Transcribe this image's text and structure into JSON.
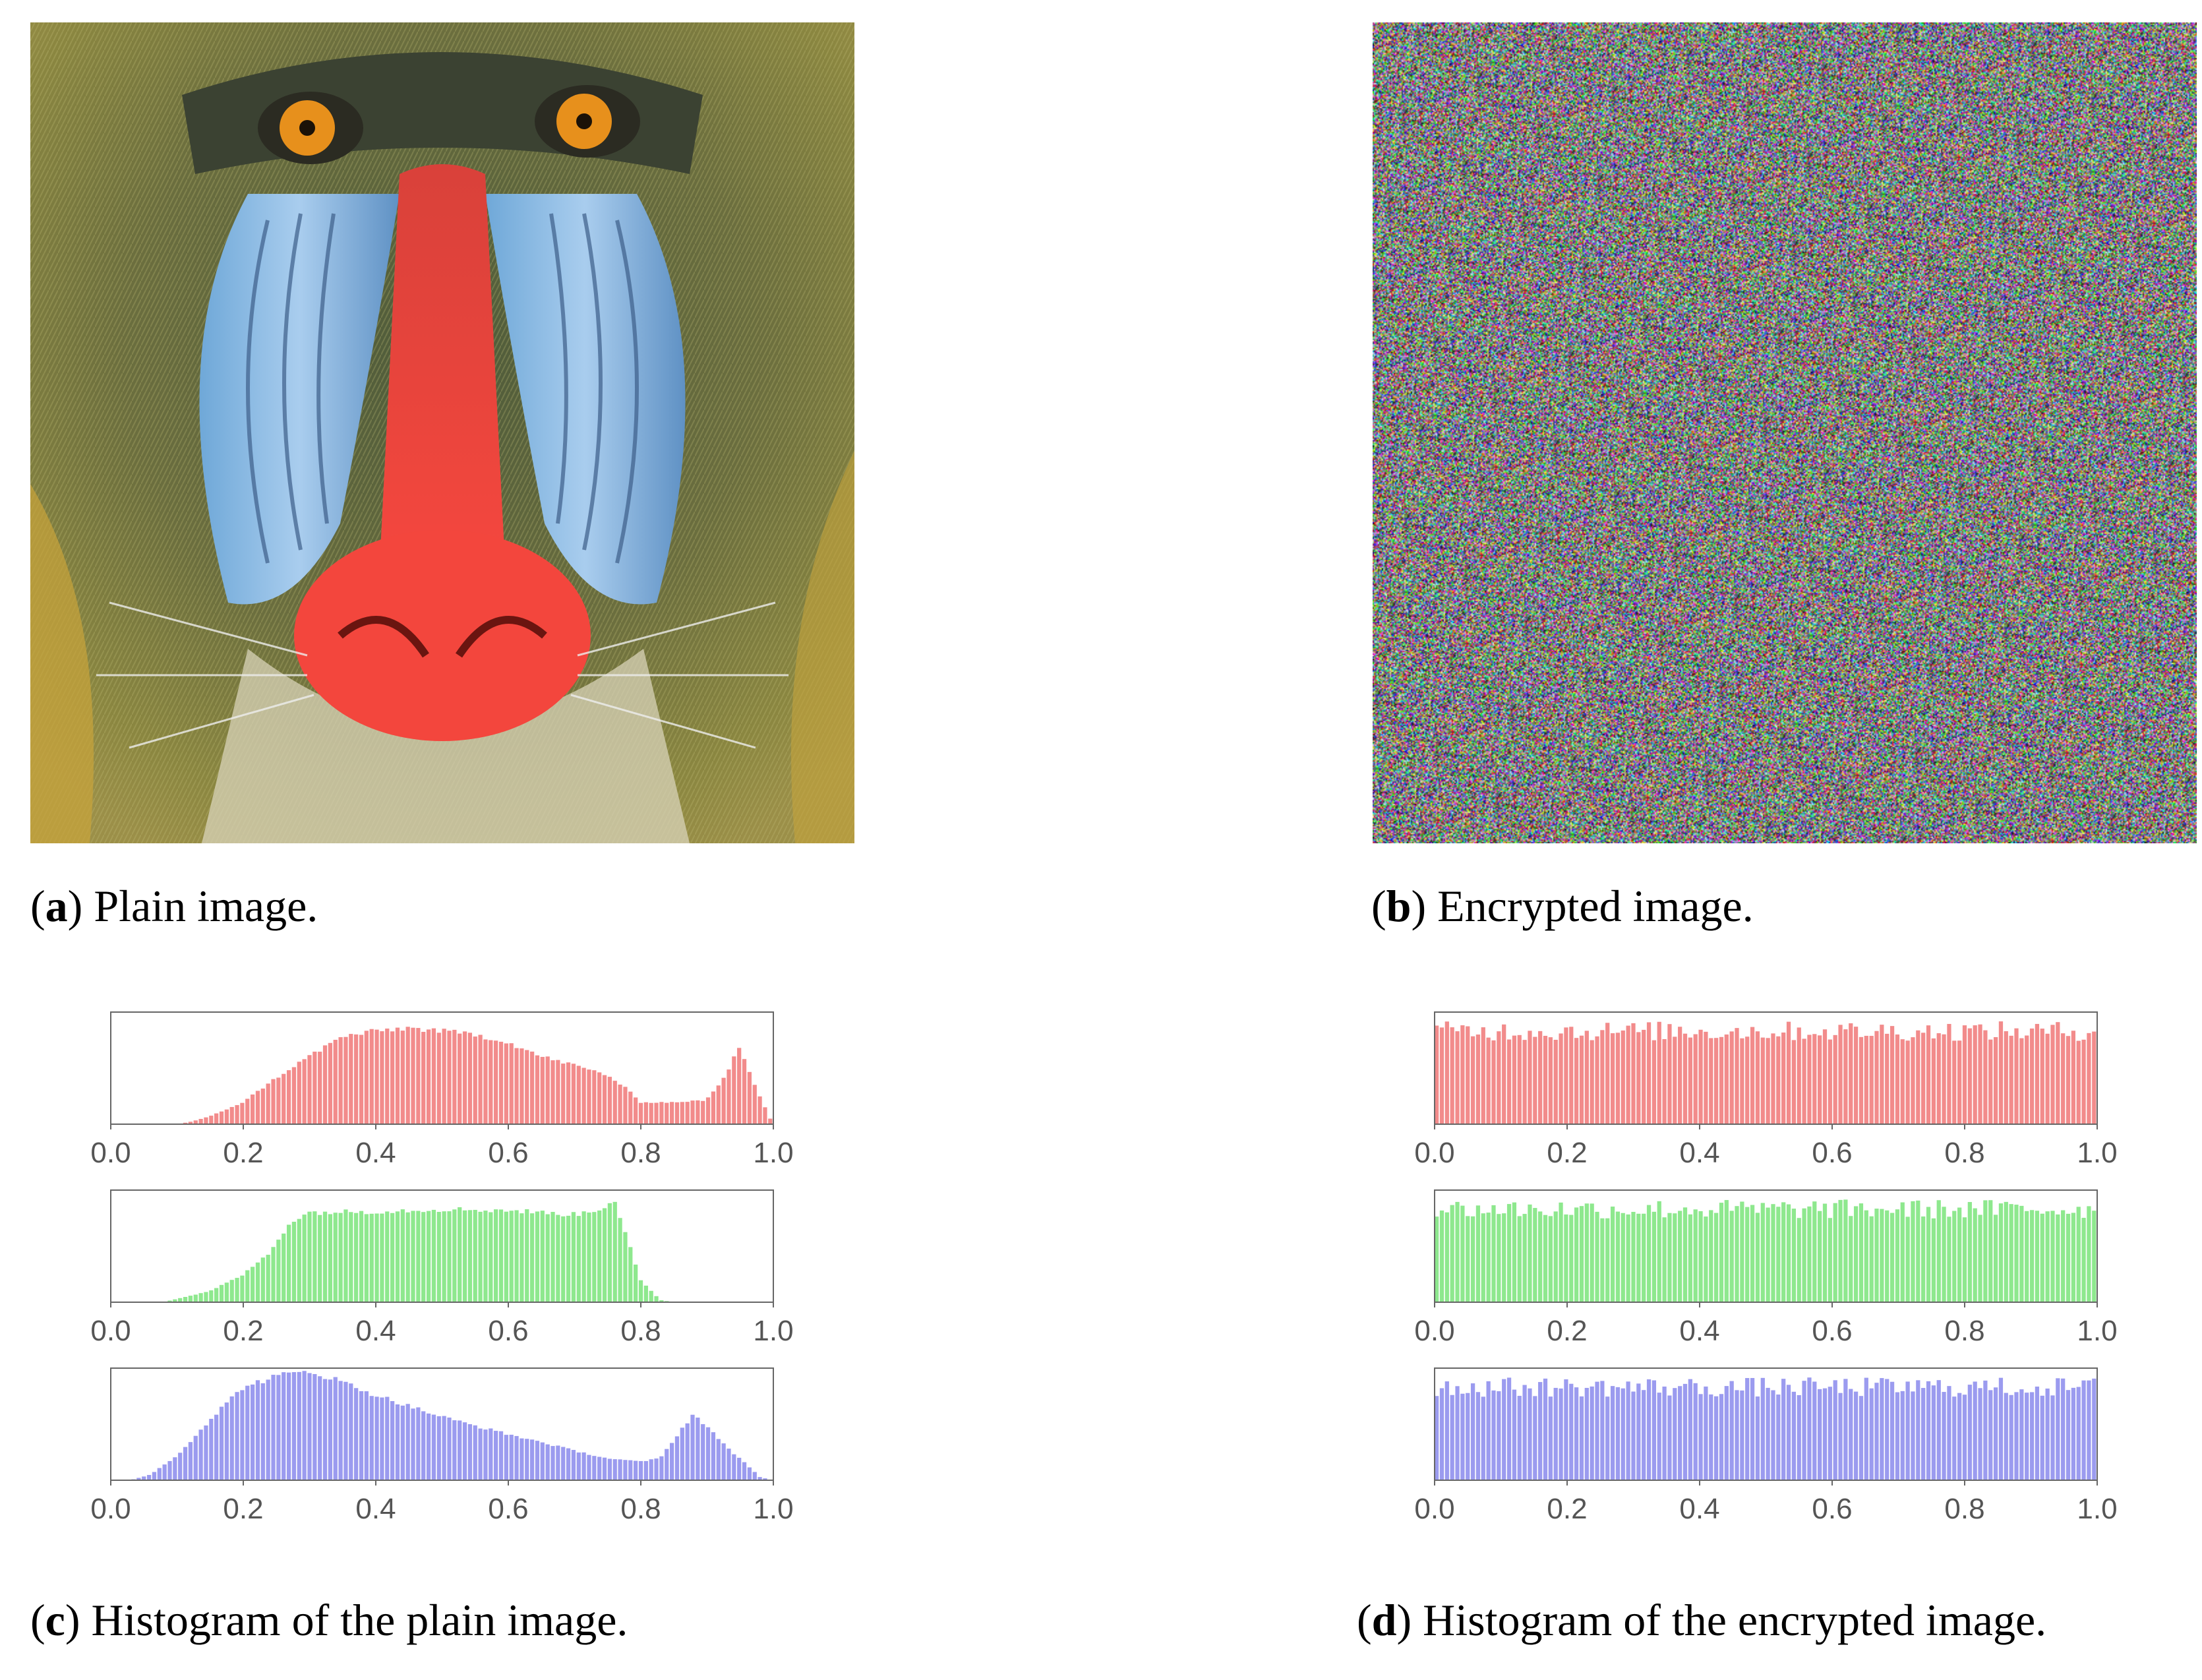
{
  "captions": {
    "a": {
      "letter": "a",
      "text": "Plain image."
    },
    "b": {
      "letter": "b",
      "text": "Encrypted image."
    },
    "c": {
      "letter": "c",
      "text": "Histogram of the plain image."
    },
    "d": {
      "letter": "d",
      "text": "Histogram of the encrypted image."
    }
  },
  "colors": {
    "red": "#f28b8b",
    "green": "#8ee88e",
    "blue": "#9b9bef",
    "frame": "#666666"
  },
  "chart_data": [
    {
      "type": "bar",
      "panel": "c",
      "channel": "red",
      "xlim": [
        0,
        1
      ],
      "ylim": [
        0,
        1
      ],
      "xticks": [
        "0.0",
        "0.2",
        "0.4",
        "0.6",
        "0.8",
        "1.0"
      ],
      "x": [
        0.0,
        0.05,
        0.1,
        0.12,
        0.15,
        0.2,
        0.25,
        0.3,
        0.35,
        0.4,
        0.45,
        0.5,
        0.55,
        0.6,
        0.65,
        0.7,
        0.75,
        0.78,
        0.8,
        0.85,
        0.9,
        0.93,
        0.95,
        0.97,
        1.0
      ],
      "values": [
        0.0,
        0.0,
        0.0,
        0.02,
        0.07,
        0.2,
        0.42,
        0.62,
        0.8,
        0.85,
        0.88,
        0.85,
        0.82,
        0.75,
        0.62,
        0.54,
        0.45,
        0.32,
        0.2,
        0.2,
        0.22,
        0.45,
        0.72,
        0.4,
        0.0
      ]
    },
    {
      "type": "bar",
      "panel": "c",
      "channel": "green",
      "xlim": [
        0,
        1
      ],
      "ylim": [
        0,
        1
      ],
      "xticks": [
        "0.0",
        "0.2",
        "0.4",
        "0.6",
        "0.8",
        "1.0"
      ],
      "x": [
        0.0,
        0.08,
        0.1,
        0.15,
        0.2,
        0.24,
        0.27,
        0.3,
        0.4,
        0.5,
        0.6,
        0.7,
        0.74,
        0.76,
        0.78,
        0.8,
        0.83,
        0.85,
        1.0
      ],
      "values": [
        0.0,
        0.0,
        0.03,
        0.1,
        0.25,
        0.45,
        0.72,
        0.82,
        0.83,
        0.85,
        0.84,
        0.8,
        0.85,
        0.95,
        0.6,
        0.2,
        0.02,
        0.0,
        0.0
      ]
    },
    {
      "type": "bar",
      "panel": "c",
      "channel": "blue",
      "xlim": [
        0,
        1
      ],
      "ylim": [
        0,
        1
      ],
      "xticks": [
        "0.0",
        "0.2",
        "0.4",
        "0.6",
        "0.8",
        "1.0"
      ],
      "x": [
        0.0,
        0.03,
        0.06,
        0.1,
        0.15,
        0.2,
        0.25,
        0.3,
        0.35,
        0.4,
        0.45,
        0.5,
        0.55,
        0.6,
        0.65,
        0.7,
        0.75,
        0.8,
        0.83,
        0.86,
        0.88,
        0.9,
        0.93,
        0.96,
        0.98,
        1.0
      ],
      "values": [
        0.0,
        0.0,
        0.05,
        0.22,
        0.55,
        0.85,
        0.95,
        1.0,
        0.9,
        0.78,
        0.68,
        0.58,
        0.5,
        0.42,
        0.35,
        0.27,
        0.2,
        0.17,
        0.2,
        0.45,
        0.6,
        0.5,
        0.3,
        0.15,
        0.03,
        0.0
      ]
    },
    {
      "type": "bar",
      "panel": "d",
      "channel": "red",
      "xlim": [
        0,
        1
      ],
      "ylim": [
        0,
        1
      ],
      "xticks": [
        "0.0",
        "0.2",
        "0.4",
        "0.6",
        "0.8",
        "1.0"
      ],
      "x": [
        0.0,
        1.0
      ],
      "values": [
        0.85,
        0.85
      ],
      "note_uniform": "approximately uniform"
    },
    {
      "type": "bar",
      "panel": "d",
      "channel": "green",
      "xlim": [
        0,
        1
      ],
      "ylim": [
        0,
        1
      ],
      "xticks": [
        "0.0",
        "0.2",
        "0.4",
        "0.6",
        "0.8",
        "1.0"
      ],
      "x": [
        0.0,
        1.0
      ],
      "values": [
        0.85,
        0.85
      ]
    },
    {
      "type": "bar",
      "panel": "d",
      "channel": "blue",
      "xlim": [
        0,
        1
      ],
      "ylim": [
        0,
        1
      ],
      "xticks": [
        "0.0",
        "0.2",
        "0.4",
        "0.6",
        "0.8",
        "1.0"
      ],
      "x": [
        0.0,
        1.0
      ],
      "values": [
        0.85,
        0.85
      ]
    }
  ]
}
